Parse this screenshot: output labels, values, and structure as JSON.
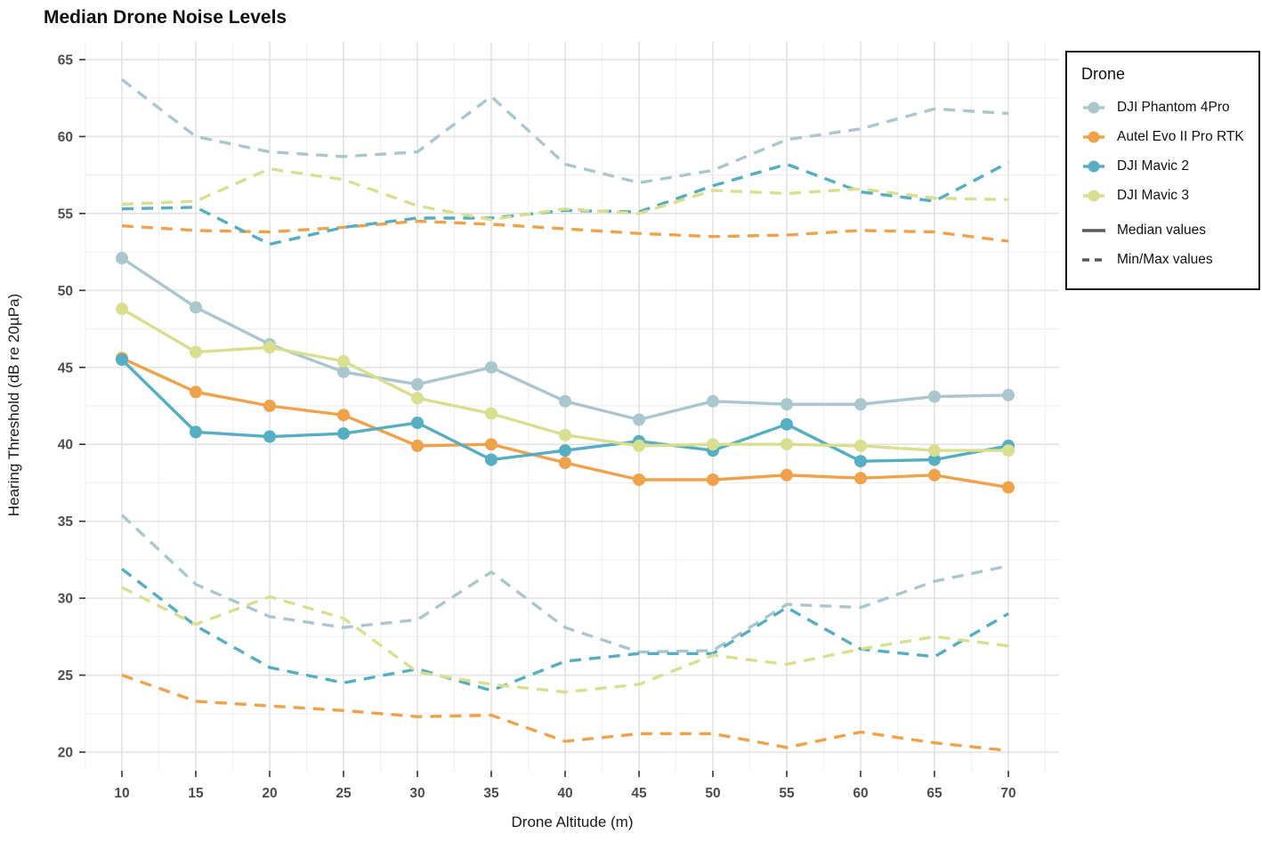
{
  "title": "Median Drone Noise Levels",
  "axes": {
    "x_label": "Drone Altitude (m)",
    "y_label": "Hearing Threshold (dB re 20µPa)",
    "x_ticks": [
      10,
      15,
      20,
      25,
      30,
      35,
      40,
      45,
      50,
      55,
      60,
      65,
      70
    ],
    "y_ticks": [
      65,
      60,
      55,
      50,
      45,
      40,
      35,
      30,
      25,
      20
    ]
  },
  "legend": {
    "title": "Drone",
    "median_label": "Median values",
    "minmax_label": "Min/Max values",
    "linetype_key_color": "#595959"
  },
  "chart_data": {
    "type": "line",
    "title": "Median Drone Noise Levels",
    "xlabel": "Drone Altitude (m)",
    "ylabel": "Hearing Threshold (dB re 20µPa)",
    "x": [
      10,
      15,
      20,
      25,
      30,
      35,
      40,
      45,
      50,
      55,
      60,
      65,
      70
    ],
    "xlim": [
      7.5,
      72.5
    ],
    "ylim": [
      18.8,
      66.2
    ],
    "grid": "on",
    "legend_position": "top-right",
    "line_styles": {
      "median": "solid-with-points",
      "minmax": "dashed"
    },
    "series": [
      {
        "name": "DJI Phantom 4Pro",
        "color": "#aac7ce",
        "median": [
          52.1,
          48.9,
          46.5,
          44.7,
          43.9,
          45.0,
          42.8,
          41.6,
          42.8,
          42.6,
          42.6,
          43.1,
          43.2
        ],
        "max": [
          63.7,
          60.0,
          59.0,
          58.7,
          59.0,
          62.6,
          58.2,
          57.0,
          57.8,
          59.8,
          60.5,
          61.8,
          61.5
        ],
        "min": [
          35.4,
          30.9,
          28.8,
          28.1,
          28.6,
          31.7,
          28.1,
          26.5,
          26.6,
          29.6,
          29.4,
          31.1,
          32.1
        ]
      },
      {
        "name": "Autel Evo II Pro RTK",
        "color": "#f0a24b",
        "median": [
          45.6,
          43.4,
          42.5,
          41.9,
          39.9,
          40.0,
          38.8,
          37.7,
          37.7,
          38.0,
          37.8,
          38.0,
          37.2
        ],
        "max": [
          54.2,
          53.9,
          53.8,
          54.1,
          54.5,
          54.3,
          54.0,
          53.7,
          53.5,
          53.6,
          53.9,
          53.8,
          53.2
        ],
        "min": [
          25.0,
          23.3,
          23.0,
          22.7,
          22.3,
          22.4,
          20.7,
          21.2,
          21.2,
          20.3,
          21.3,
          20.6,
          20.1
        ]
      },
      {
        "name": "DJI Mavic 2",
        "color": "#55aec1",
        "median": [
          45.5,
          40.8,
          40.5,
          40.7,
          41.4,
          39.0,
          39.6,
          40.2,
          39.6,
          41.3,
          38.9,
          39.0,
          39.9
        ],
        "max": [
          55.3,
          55.4,
          53.0,
          54.1,
          54.7,
          54.7,
          55.2,
          55.1,
          56.8,
          58.2,
          56.4,
          55.8,
          58.3
        ],
        "min": [
          31.9,
          28.2,
          25.5,
          24.5,
          25.4,
          24.0,
          25.9,
          26.4,
          26.4,
          29.4,
          26.7,
          26.2,
          29.0
        ]
      },
      {
        "name": "DJI Mavic 3",
        "color": "#d9df8e",
        "median": [
          48.8,
          46.0,
          46.3,
          45.4,
          43.0,
          42.0,
          40.6,
          39.9,
          40.0,
          40.0,
          39.9,
          39.6,
          39.6
        ],
        "max": [
          55.6,
          55.8,
          57.9,
          57.2,
          55.5,
          54.6,
          55.3,
          55.0,
          56.5,
          56.3,
          56.6,
          56.0,
          55.9
        ],
        "min": [
          30.7,
          28.3,
          30.1,
          28.7,
          25.2,
          24.4,
          23.9,
          24.4,
          26.3,
          25.7,
          26.7,
          27.5,
          26.9
        ]
      }
    ]
  },
  "style_colors": {
    "grid_major": "#e3e3e3",
    "grid_minor": "#f0f0f0",
    "tick_mark": "#333333",
    "tick_label": "#4d4d4d",
    "panel_background": "#ffffff"
  }
}
